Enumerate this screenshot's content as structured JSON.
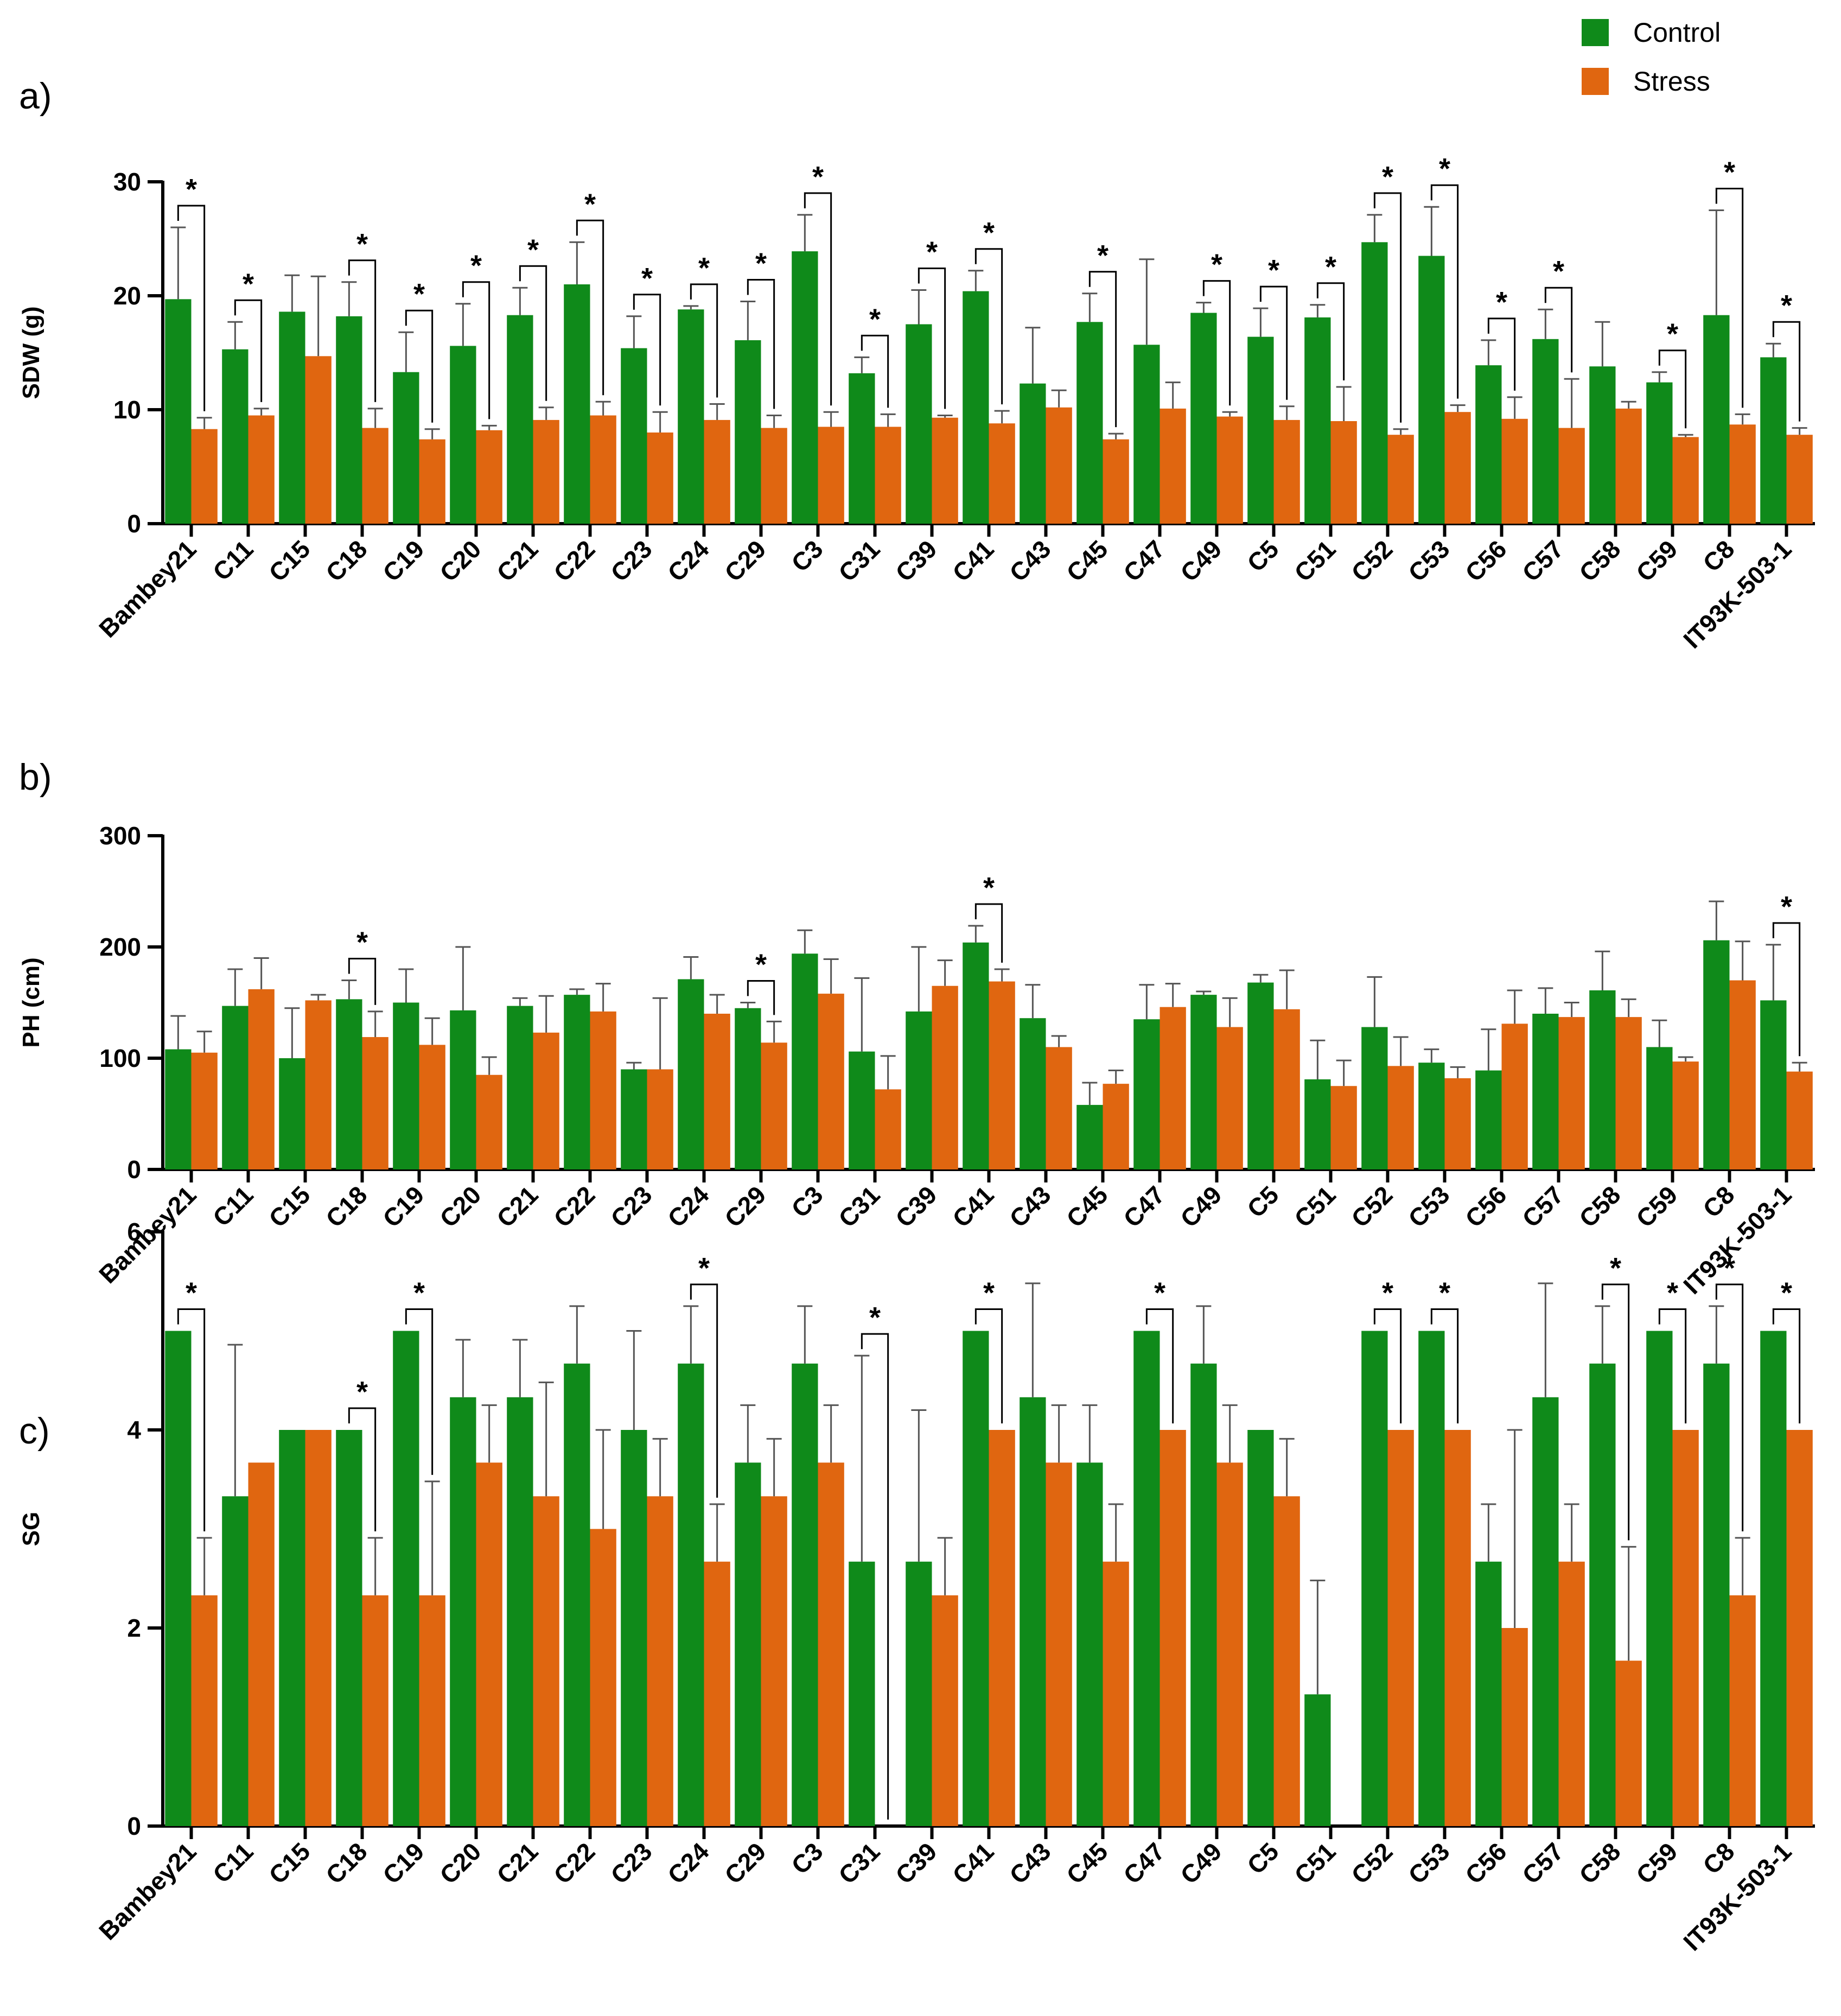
{
  "legend": {
    "items": [
      {
        "label": "Control",
        "color": "#0f8a1a"
      },
      {
        "label": "Stress",
        "color": "#e06610"
      }
    ]
  },
  "chart_data": [
    {
      "type": "bar",
      "panel_label": "a)",
      "ylabel": "SDW (g)",
      "ylim": [
        0,
        30
      ],
      "yticks": [
        "0",
        "10",
        "20",
        "30"
      ],
      "categories": [
        "Bambey21",
        "C11",
        "C15",
        "C18",
        "C19",
        "C20",
        "C21",
        "C22",
        "C23",
        "C24",
        "C29",
        "C3",
        "C31",
        "C39",
        "C41",
        "C43",
        "C45",
        "C47",
        "C49",
        "C5",
        "C51",
        "C52",
        "C53",
        "C56",
        "C57",
        "C58",
        "C59",
        "C8",
        "IT93K-503-1"
      ],
      "series": [
        {
          "name": "Control",
          "values": [
            19.7,
            15.3,
            18.6,
            18.2,
            13.3,
            15.6,
            18.3,
            21.0,
            15.4,
            18.8,
            16.1,
            23.9,
            13.2,
            17.5,
            20.4,
            12.3,
            17.7,
            15.7,
            18.5,
            16.4,
            18.1,
            24.7,
            23.5,
            13.9,
            16.2,
            13.8,
            12.4,
            18.3,
            14.6
          ],
          "errors": [
            6.3,
            2.4,
            3.2,
            3.0,
            3.5,
            3.7,
            2.4,
            3.7,
            2.8,
            0.3,
            3.4,
            3.2,
            1.4,
            3.0,
            1.8,
            4.9,
            2.5,
            7.5,
            0.9,
            2.5,
            1.1,
            2.4,
            4.3,
            2.2,
            2.6,
            3.9,
            0.9,
            9.2,
            1.2
          ]
        },
        {
          "name": "Stress",
          "values": [
            8.3,
            9.5,
            14.7,
            8.4,
            7.4,
            8.2,
            9.1,
            9.5,
            8.0,
            9.1,
            8.4,
            8.5,
            8.5,
            9.3,
            8.8,
            10.2,
            7.4,
            10.1,
            9.4,
            9.1,
            9.0,
            7.8,
            9.8,
            9.2,
            8.4,
            10.1,
            7.6,
            8.7,
            7.8
          ],
          "errors": [
            1.0,
            0.6,
            7.0,
            1.7,
            0.9,
            0.4,
            1.1,
            1.2,
            1.8,
            1.4,
            1.1,
            1.3,
            1.1,
            0.2,
            1.1,
            1.5,
            0.5,
            2.3,
            0.4,
            1.2,
            3.0,
            0.5,
            0.6,
            1.9,
            4.3,
            0.6,
            0.2,
            0.9,
            0.6
          ]
        }
      ],
      "significant": [
        true,
        true,
        false,
        true,
        true,
        true,
        true,
        true,
        true,
        true,
        true,
        true,
        true,
        true,
        true,
        false,
        true,
        false,
        true,
        true,
        true,
        true,
        true,
        true,
        true,
        false,
        true,
        true,
        true
      ],
      "sig_marker": "*"
    },
    {
      "type": "bar",
      "panel_label": "b)",
      "ylabel": "PH (cm)",
      "ylim": [
        0,
        300
      ],
      "yticks": [
        "0",
        "100",
        "200",
        "300"
      ],
      "categories": [
        "Bambey21",
        "C11",
        "C15",
        "C18",
        "C19",
        "C20",
        "C21",
        "C22",
        "C23",
        "C24",
        "C29",
        "C3",
        "C31",
        "C39",
        "C41",
        "C43",
        "C45",
        "C47",
        "C49",
        "C5",
        "C51",
        "C52",
        "C53",
        "C56",
        "C57",
        "C58",
        "C59",
        "C8",
        "IT93K-503-1"
      ],
      "series": [
        {
          "name": "Control",
          "values": [
            108,
            147,
            100,
            153,
            150,
            143,
            147,
            157,
            90,
            171,
            145,
            194,
            106,
            142,
            204,
            136,
            58,
            135,
            157,
            168,
            81,
            128,
            96,
            89,
            140,
            161,
            110,
            206,
            152
          ],
          "errors": [
            30,
            33,
            45,
            17,
            30,
            57,
            7,
            5,
            6,
            20,
            5,
            21,
            66,
            58,
            15,
            30,
            20,
            31,
            3,
            7,
            35,
            45,
            12,
            37,
            23,
            35,
            24,
            35,
            50
          ]
        },
        {
          "name": "Stress",
          "values": [
            105,
            162,
            152,
            119,
            112,
            85,
            123,
            142,
            90,
            140,
            114,
            158,
            72,
            165,
            169,
            110,
            77,
            146,
            128,
            144,
            75,
            93,
            82,
            131,
            137,
            137,
            97,
            170,
            88
          ],
          "errors": [
            19,
            28,
            5,
            23,
            24,
            16,
            33,
            25,
            64,
            17,
            19,
            31,
            30,
            23,
            11,
            10,
            12,
            21,
            26,
            35,
            23,
            26,
            10,
            30,
            13,
            16,
            4,
            35,
            8
          ]
        }
      ],
      "significant": [
        false,
        false,
        false,
        true,
        false,
        false,
        false,
        false,
        false,
        false,
        true,
        false,
        false,
        false,
        true,
        false,
        false,
        false,
        false,
        false,
        false,
        false,
        false,
        false,
        false,
        false,
        false,
        false,
        true
      ],
      "sig_marker": "*"
    },
    {
      "type": "bar",
      "panel_label": "c)",
      "ylabel": "SG",
      "ylim": [
        0,
        6
      ],
      "yticks": [
        "0",
        "2",
        "4",
        "6"
      ],
      "categories": [
        "Bambey21",
        "C11",
        "C15",
        "C18",
        "C19",
        "C20",
        "C21",
        "C22",
        "C23",
        "C24",
        "C29",
        "C3",
        "C31",
        "C39",
        "C41",
        "C43",
        "C45",
        "C47",
        "C49",
        "C5",
        "C51",
        "C52",
        "C53",
        "C56",
        "C57",
        "C58",
        "C59",
        "C8",
        "IT93K-503-1"
      ],
      "series": [
        {
          "name": "Control",
          "values": [
            5.0,
            3.33,
            4.0,
            4.0,
            5.0,
            4.33,
            4.33,
            4.67,
            4.0,
            4.67,
            3.67,
            4.67,
            2.67,
            2.67,
            5.0,
            4.33,
            3.67,
            5.0,
            4.67,
            4.0,
            1.33,
            5.0,
            5.0,
            2.67,
            4.33,
            4.67,
            5.0,
            4.67,
            5.0
          ],
          "errors": [
            0,
            1.53,
            0,
            0,
            0,
            0.58,
            0.58,
            0.58,
            1.0,
            0.58,
            0.58,
            0.58,
            2.08,
            1.53,
            0,
            1.15,
            0.58,
            0,
            0.58,
            0,
            1.15,
            0,
            0,
            0.58,
            1.15,
            0.58,
            0,
            0.58,
            0
          ]
        },
        {
          "name": "Stress",
          "values": [
            2.33,
            3.67,
            4.0,
            2.33,
            2.33,
            3.67,
            3.33,
            3.0,
            3.33,
            2.67,
            3.33,
            3.67,
            0,
            2.33,
            4.0,
            3.67,
            2.67,
            4.0,
            3.67,
            3.33,
            0,
            4.0,
            4.0,
            2.0,
            2.67,
            1.67,
            4.0,
            2.33,
            4.0
          ],
          "errors": [
            0.58,
            0,
            0,
            0.58,
            1.15,
            0.58,
            1.15,
            1.0,
            0.58,
            0.58,
            0.58,
            0.58,
            0,
            0.58,
            0,
            0.58,
            0.58,
            0,
            0.58,
            0.58,
            0,
            0,
            0,
            2.0,
            0.58,
            1.15,
            0,
            0.58,
            0
          ]
        }
      ],
      "significant": [
        true,
        false,
        false,
        true,
        true,
        false,
        false,
        false,
        false,
        true,
        false,
        false,
        true,
        false,
        true,
        false,
        false,
        true,
        false,
        false,
        false,
        true,
        true,
        false,
        false,
        true,
        true,
        true,
        true
      ],
      "sig_marker": "*"
    }
  ]
}
